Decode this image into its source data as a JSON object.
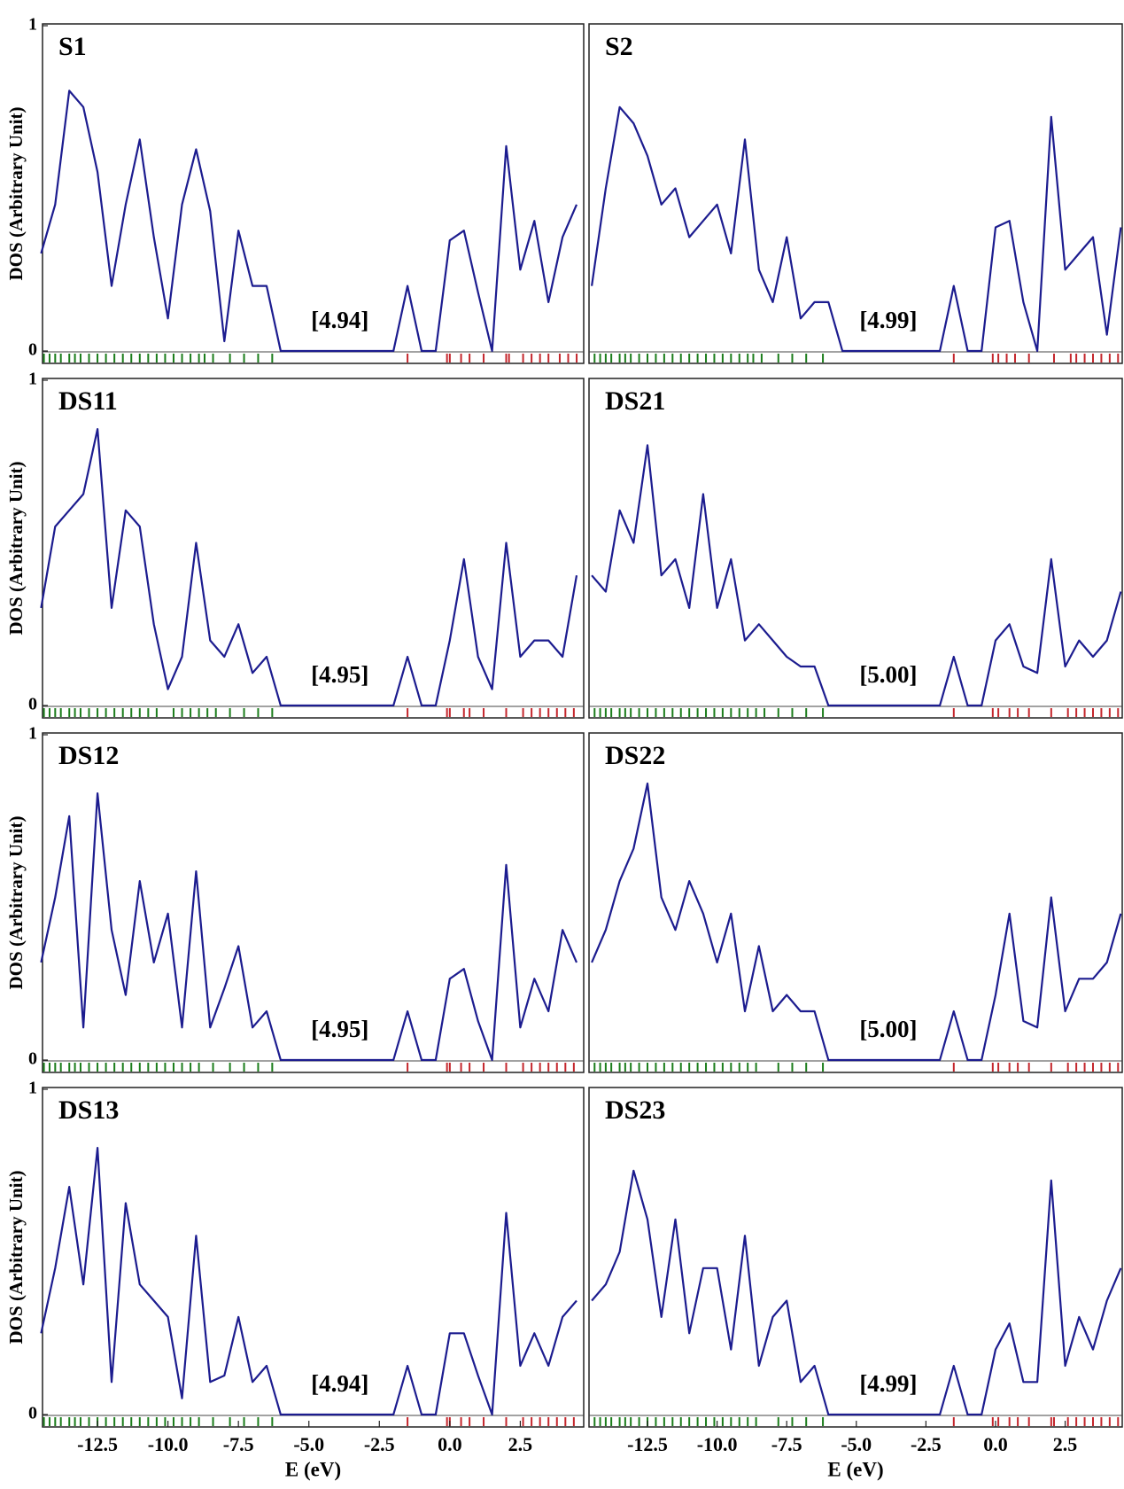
{
  "chart_data": [
    {
      "type": "line",
      "title": "S1",
      "annotation": "[4.94]",
      "ylabel": "DOS (Arbitrary Unit)",
      "yticks": [
        0,
        1
      ],
      "xlim": [
        -14.45,
        4.75
      ],
      "ylim": [
        0,
        1
      ],
      "color": "#1c1c8f",
      "occupied_color": "#1b7d1b",
      "virtual_color": "#c4262c",
      "x": [
        -14.5,
        -14,
        -13.5,
        -13,
        -12.5,
        -12,
        -11.5,
        -11,
        -10.5,
        -10,
        -9.5,
        -9,
        -8.5,
        -8,
        -7.5,
        -7,
        -6.5,
        -6,
        -5.5,
        -5,
        -4.5,
        -4,
        -3.5,
        -3,
        -2.5,
        -2,
        -1.5,
        -1,
        -0.5,
        0,
        0.5,
        1,
        1.5,
        2,
        2.5,
        3,
        3.5,
        4,
        4.5
      ],
      "values": [
        0.3,
        0.45,
        0.8,
        0.75,
        0.55,
        0.2,
        0.45,
        0.65,
        0.35,
        0.1,
        0.45,
        0.62,
        0.43,
        0.03,
        0.37,
        0.2,
        0.2,
        0,
        0,
        0,
        0,
        0,
        0,
        0,
        0,
        0,
        0.2,
        0,
        0,
        0.34,
        0.37,
        0.18,
        0,
        0.63,
        0.25,
        0.4,
        0.15,
        0.35,
        0.45
      ],
      "occupied": [
        -14.4,
        -14.2,
        -14.0,
        -13.8,
        -13.5,
        -13.3,
        -13.1,
        -12.8,
        -12.5,
        -12.2,
        -11.9,
        -11.6,
        -11.3,
        -11.0,
        -10.7,
        -10.4,
        -10.1,
        -9.8,
        -9.5,
        -9.2,
        -8.9,
        -8.7,
        -8.4,
        -7.8,
        -7.3,
        -6.8,
        -6.3
      ],
      "virtual": [
        -1.5,
        -0.1,
        0.0,
        0.4,
        0.7,
        1.2,
        2.0,
        2.1,
        2.6,
        2.9,
        3.2,
        3.5,
        3.9,
        4.2,
        4.5
      ]
    },
    {
      "type": "line",
      "title": "S2",
      "annotation": "[4.99]",
      "xlim": [
        -14.6,
        4.55
      ],
      "ylim": [
        0,
        1
      ],
      "color": "#1c1c8f",
      "occupied_color": "#1b7d1b",
      "virtual_color": "#c4262c",
      "x": [
        -14.5,
        -14,
        -13.5,
        -13,
        -12.5,
        -12,
        -11.5,
        -11,
        -10.5,
        -10,
        -9.5,
        -9,
        -8.5,
        -8,
        -7.5,
        -7,
        -6.5,
        -6,
        -5.5,
        -5,
        -4.5,
        -4,
        -3.5,
        -3,
        -2.5,
        -2,
        -1.5,
        -1,
        -0.5,
        0,
        0.5,
        1,
        1.5,
        2,
        2.5,
        3,
        3.5,
        4,
        4.5
      ],
      "values": [
        0.2,
        0.5,
        0.75,
        0.7,
        0.6,
        0.45,
        0.5,
        0.35,
        0.4,
        0.45,
        0.3,
        0.65,
        0.25,
        0.15,
        0.35,
        0.1,
        0.15,
        0.15,
        0,
        0,
        0,
        0,
        0,
        0,
        0,
        0,
        0.2,
        0,
        0,
        0.38,
        0.4,
        0.15,
        0,
        0.72,
        0.25,
        0.3,
        0.35,
        0.05,
        0.38
      ],
      "occupied": [
        -14.4,
        -14.2,
        -14.0,
        -13.8,
        -13.5,
        -13.3,
        -13.1,
        -12.8,
        -12.5,
        -12.2,
        -11.9,
        -11.6,
        -11.3,
        -11.0,
        -10.7,
        -10.4,
        -10.1,
        -9.8,
        -9.5,
        -9.2,
        -8.9,
        -8.7,
        -8.4,
        -7.8,
        -7.3,
        -6.8,
        -6.2
      ],
      "virtual": [
        -1.5,
        -0.1,
        0.1,
        0.4,
        0.7,
        1.2,
        2.1,
        2.7,
        2.9,
        3.2,
        3.5,
        3.8,
        4.1,
        4.4
      ]
    },
    {
      "type": "line",
      "title": "DS11",
      "annotation": "[4.95]",
      "ylabel": "DOS (Arbitrary Unit)",
      "yticks": [
        0,
        1
      ],
      "xlim": [
        -14.45,
        4.75
      ],
      "ylim": [
        0,
        1
      ],
      "color": "#1c1c8f",
      "occupied_color": "#1b7d1b",
      "virtual_color": "#c4262c",
      "x": [
        -14.5,
        -14,
        -13.5,
        -13,
        -12.5,
        -12,
        -11.5,
        -11,
        -10.5,
        -10,
        -9.5,
        -9,
        -8.5,
        -8,
        -7.5,
        -7,
        -6.5,
        -6,
        -5.5,
        -5,
        -4.5,
        -4,
        -3.5,
        -3,
        -2.5,
        -2,
        -1.5,
        -1,
        -0.5,
        0,
        0.5,
        1,
        1.5,
        2,
        2.5,
        3,
        3.5,
        4,
        4.5
      ],
      "values": [
        0.3,
        0.55,
        0.6,
        0.65,
        0.85,
        0.3,
        0.6,
        0.55,
        0.25,
        0.05,
        0.15,
        0.5,
        0.2,
        0.15,
        0.25,
        0.1,
        0.15,
        0,
        0,
        0,
        0,
        0,
        0,
        0,
        0,
        0,
        0.15,
        0,
        0,
        0.2,
        0.45,
        0.15,
        0.05,
        0.5,
        0.15,
        0.2,
        0.2,
        0.15,
        0.4
      ],
      "occupied": [
        -14.4,
        -14.2,
        -14.0,
        -13.8,
        -13.5,
        -13.3,
        -13.1,
        -12.8,
        -12.5,
        -12.2,
        -11.9,
        -11.6,
        -11.3,
        -11.0,
        -10.7,
        -10.4,
        -9.8,
        -9.5,
        -9.2,
        -8.9,
        -8.6,
        -8.3,
        -7.8,
        -7.3,
        -6.8,
        -6.3
      ],
      "virtual": [
        -1.5,
        -0.1,
        0.0,
        0.5,
        0.7,
        1.2,
        2.0,
        2.6,
        2.9,
        3.2,
        3.5,
        3.8,
        4.1,
        4.4
      ]
    },
    {
      "type": "line",
      "title": "DS21",
      "annotation": "[5.00]",
      "xlim": [
        -14.6,
        4.55
      ],
      "ylim": [
        0,
        1
      ],
      "color": "#1c1c8f",
      "occupied_color": "#1b7d1b",
      "virtual_color": "#c4262c",
      "x": [
        -14.5,
        -14,
        -13.5,
        -13,
        -12.5,
        -12,
        -11.5,
        -11,
        -10.5,
        -10,
        -9.5,
        -9,
        -8.5,
        -8,
        -7.5,
        -7,
        -6.5,
        -6,
        -5.5,
        -5,
        -4.5,
        -4,
        -3.5,
        -3,
        -2.5,
        -2,
        -1.5,
        -1,
        -0.5,
        0,
        0.5,
        1,
        1.5,
        2,
        2.5,
        3,
        3.5,
        4,
        4.5
      ],
      "values": [
        0.4,
        0.35,
        0.6,
        0.5,
        0.8,
        0.4,
        0.45,
        0.3,
        0.65,
        0.3,
        0.45,
        0.2,
        0.25,
        0.2,
        0.15,
        0.12,
        0.12,
        0,
        0,
        0,
        0,
        0,
        0,
        0,
        0,
        0,
        0.15,
        0,
        0,
        0.2,
        0.25,
        0.12,
        0.1,
        0.45,
        0.12,
        0.2,
        0.15,
        0.2,
        0.35
      ],
      "occupied": [
        -14.4,
        -14.2,
        -14.0,
        -13.8,
        -13.5,
        -13.3,
        -13.1,
        -12.8,
        -12.5,
        -12.2,
        -11.9,
        -11.6,
        -11.3,
        -11.0,
        -10.7,
        -10.4,
        -10.1,
        -9.8,
        -9.5,
        -9.2,
        -8.9,
        -8.6,
        -8.3,
        -7.8,
        -7.3,
        -6.8,
        -6.2
      ],
      "virtual": [
        -1.5,
        -0.1,
        0.1,
        0.5,
        0.8,
        1.2,
        2.0,
        2.6,
        2.9,
        3.2,
        3.5,
        3.8,
        4.1,
        4.4
      ]
    },
    {
      "type": "line",
      "title": "DS12",
      "annotation": "[4.95]",
      "ylabel": "DOS (Arbitrary Unit)",
      "yticks": [
        0,
        1
      ],
      "xlim": [
        -14.45,
        4.75
      ],
      "ylim": [
        0,
        1
      ],
      "color": "#1c1c8f",
      "occupied_color": "#1b7d1b",
      "virtual_color": "#c4262c",
      "x": [
        -14.5,
        -14,
        -13.5,
        -13,
        -12.5,
        -12,
        -11.5,
        -11,
        -10.5,
        -10,
        -9.5,
        -9,
        -8.5,
        -8,
        -7.5,
        -7,
        -6.5,
        -6,
        -5.5,
        -5,
        -4.5,
        -4,
        -3.5,
        -3,
        -2.5,
        -2,
        -1.5,
        -1,
        -0.5,
        0,
        0.5,
        1,
        1.5,
        2,
        2.5,
        3,
        3.5,
        4,
        4.5
      ],
      "values": [
        0.3,
        0.5,
        0.75,
        0.1,
        0.82,
        0.4,
        0.2,
        0.55,
        0.3,
        0.45,
        0.1,
        0.58,
        0.1,
        0.22,
        0.35,
        0.1,
        0.15,
        0,
        0,
        0,
        0,
        0,
        0,
        0,
        0,
        0,
        0.15,
        0,
        0,
        0.25,
        0.28,
        0.12,
        0,
        0.6,
        0.1,
        0.25,
        0.15,
        0.4,
        0.3
      ],
      "occupied": [
        -14.4,
        -14.2,
        -14.0,
        -13.8,
        -13.5,
        -13.3,
        -13.1,
        -12.8,
        -12.5,
        -12.2,
        -11.9,
        -11.6,
        -11.3,
        -11.0,
        -10.7,
        -10.4,
        -10.1,
        -9.8,
        -9.5,
        -9.2,
        -8.9,
        -8.4,
        -7.8,
        -7.3,
        -6.8,
        -6.3
      ],
      "virtual": [
        -1.5,
        -0.1,
        0.0,
        0.4,
        0.7,
        1.2,
        2.0,
        2.6,
        2.9,
        3.2,
        3.5,
        3.8,
        4.1,
        4.4
      ]
    },
    {
      "type": "line",
      "title": "DS22",
      "annotation": "[5.00]",
      "xlim": [
        -14.6,
        4.55
      ],
      "ylim": [
        0,
        1
      ],
      "color": "#1c1c8f",
      "occupied_color": "#1b7d1b",
      "virtual_color": "#c4262c",
      "x": [
        -14.5,
        -14,
        -13.5,
        -13,
        -12.5,
        -12,
        -11.5,
        -11,
        -10.5,
        -10,
        -9.5,
        -9,
        -8.5,
        -8,
        -7.5,
        -7,
        -6.5,
        -6,
        -5.5,
        -5,
        -4.5,
        -4,
        -3.5,
        -3,
        -2.5,
        -2,
        -1.5,
        -1,
        -0.5,
        0,
        0.5,
        1,
        1.5,
        2,
        2.5,
        3,
        3.5,
        4,
        4.5
      ],
      "values": [
        0.3,
        0.4,
        0.55,
        0.65,
        0.85,
        0.5,
        0.4,
        0.55,
        0.45,
        0.3,
        0.45,
        0.15,
        0.35,
        0.15,
        0.2,
        0.15,
        0.15,
        0,
        0,
        0,
        0,
        0,
        0,
        0,
        0,
        0,
        0.15,
        0,
        0,
        0.2,
        0.45,
        0.12,
        0.1,
        0.5,
        0.15,
        0.25,
        0.25,
        0.3,
        0.45
      ],
      "occupied": [
        -14.4,
        -14.2,
        -14.0,
        -13.8,
        -13.5,
        -13.3,
        -13.1,
        -12.8,
        -12.5,
        -12.2,
        -11.9,
        -11.6,
        -11.3,
        -11.0,
        -10.7,
        -10.4,
        -10.1,
        -9.8,
        -9.5,
        -9.2,
        -8.9,
        -8.6,
        -7.8,
        -7.3,
        -6.8,
        -6.2
      ],
      "virtual": [
        -1.5,
        -0.1,
        0.1,
        0.5,
        0.8,
        1.2,
        2.0,
        2.6,
        2.9,
        3.2,
        3.5,
        3.8,
        4.1,
        4.4
      ]
    },
    {
      "type": "line",
      "title": "DS13",
      "annotation": "[4.94]",
      "ylabel": "DOS (Arbitrary Unit)",
      "yticks": [
        0,
        1
      ],
      "xlabel": "E (eV)",
      "xticks": [
        -12.5,
        {
          "value": -10,
          "label": "-10.0"
        },
        -7.5,
        {
          "value": -5,
          "label": "-5.0"
        },
        -2.5,
        {
          "value": 0,
          "label": "0.0"
        },
        2.5
      ],
      "xlim": [
        -14.45,
        4.75
      ],
      "ylim": [
        0,
        1
      ],
      "color": "#1c1c8f",
      "occupied_color": "#1b7d1b",
      "virtual_color": "#c4262c",
      "x": [
        -14.5,
        -14,
        -13.5,
        -13,
        -12.5,
        -12,
        -11.5,
        -11,
        -10.5,
        -10,
        -9.5,
        -9,
        -8.5,
        -8,
        -7.5,
        -7,
        -6.5,
        -6,
        -5.5,
        -5,
        -4.5,
        -4,
        -3.5,
        -3,
        -2.5,
        -2,
        -1.5,
        -1,
        -0.5,
        0,
        0.5,
        1,
        1.5,
        2,
        2.5,
        3,
        3.5,
        4,
        4.5
      ],
      "values": [
        0.25,
        0.45,
        0.7,
        0.4,
        0.82,
        0.1,
        0.65,
        0.4,
        0.35,
        0.3,
        0.05,
        0.55,
        0.1,
        0.12,
        0.3,
        0.1,
        0.15,
        0,
        0,
        0,
        0,
        0,
        0,
        0,
        0,
        0,
        0.15,
        0,
        0,
        0.25,
        0.25,
        0.12,
        0,
        0.62,
        0.15,
        0.25,
        0.15,
        0.3,
        0.35
      ],
      "occupied": [
        -14.4,
        -14.2,
        -14.0,
        -13.8,
        -13.5,
        -13.3,
        -13.1,
        -12.8,
        -12.5,
        -12.2,
        -11.9,
        -11.6,
        -11.3,
        -11.0,
        -10.7,
        -10.4,
        -10.1,
        -9.8,
        -9.5,
        -9.2,
        -8.9,
        -8.4,
        -7.8,
        -7.3,
        -6.8,
        -6.3
      ],
      "virtual": [
        -1.5,
        -0.1,
        0.0,
        0.4,
        0.7,
        1.2,
        2.0,
        2.6,
        2.9,
        3.2,
        3.5,
        3.8,
        4.1,
        4.4
      ]
    },
    {
      "type": "line",
      "title": "DS23",
      "annotation": "[4.99]",
      "xlabel": "E (eV)",
      "xticks": [
        -12.5,
        {
          "value": -10,
          "label": "-10.0"
        },
        -7.5,
        {
          "value": -5,
          "label": "-5.0"
        },
        -2.5,
        {
          "value": 0,
          "label": "0.0"
        },
        2.5
      ],
      "xlim": [
        -14.6,
        4.55
      ],
      "ylim": [
        0,
        1
      ],
      "color": "#1c1c8f",
      "occupied_color": "#1b7d1b",
      "virtual_color": "#c4262c",
      "x": [
        -14.5,
        -14,
        -13.5,
        -13,
        -12.5,
        -12,
        -11.5,
        -11,
        -10.5,
        -10,
        -9.5,
        -9,
        -8.5,
        -8,
        -7.5,
        -7,
        -6.5,
        -6,
        -5.5,
        -5,
        -4.5,
        -4,
        -3.5,
        -3,
        -2.5,
        -2,
        -1.5,
        -1,
        -0.5,
        0,
        0.5,
        1,
        1.5,
        2,
        2.5,
        3,
        3.5,
        4,
        4.5
      ],
      "values": [
        0.35,
        0.4,
        0.5,
        0.75,
        0.6,
        0.3,
        0.6,
        0.25,
        0.45,
        0.45,
        0.2,
        0.55,
        0.15,
        0.3,
        0.35,
        0.1,
        0.15,
        0,
        0,
        0,
        0,
        0,
        0,
        0,
        0,
        0,
        0.15,
        0,
        0,
        0.2,
        0.28,
        0.1,
        0.1,
        0.72,
        0.15,
        0.3,
        0.2,
        0.35,
        0.45
      ],
      "occupied": [
        -14.4,
        -14.2,
        -14.0,
        -13.8,
        -13.5,
        -13.3,
        -13.1,
        -12.8,
        -12.5,
        -12.2,
        -11.9,
        -11.6,
        -11.3,
        -11.0,
        -10.7,
        -10.4,
        -10.1,
        -9.8,
        -9.5,
        -9.2,
        -8.9,
        -8.6,
        -7.8,
        -7.3,
        -6.8,
        -6.2
      ],
      "virtual": [
        -1.5,
        -0.1,
        0.1,
        0.5,
        0.8,
        1.2,
        2.0,
        2.1,
        2.6,
        2.9,
        3.2,
        3.5,
        3.8,
        4.1,
        4.4
      ]
    }
  ]
}
